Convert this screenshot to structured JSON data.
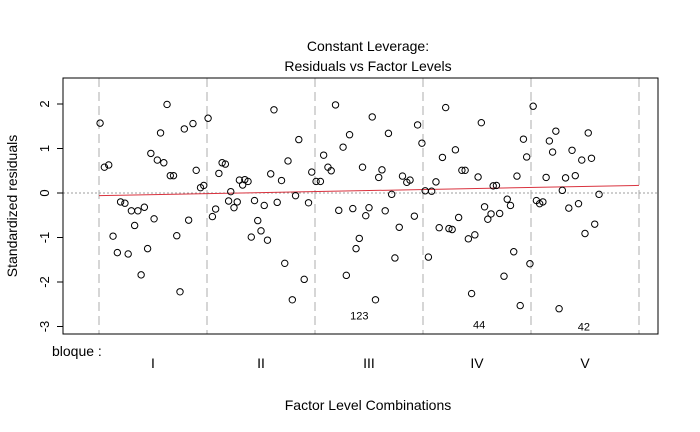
{
  "chart_data": {
    "type": "scatter",
    "title_line1": "Constant Leverage:",
    "title_line2": "Residuals vs Factor Levels",
    "xlabel": "Factor Level Combinations",
    "ylabel": "Standardized residuals",
    "factor_label": "bloque :",
    "groups": [
      "I",
      "II",
      "III",
      "IV",
      "V"
    ],
    "ylim": [
      -3.2,
      2.6
    ],
    "yticks": [
      -3,
      -2,
      -1,
      0,
      1,
      2
    ],
    "grid": false,
    "point_color": "#000000",
    "smooth_color": "#d9333f",
    "reference_color": "#9e9e9e",
    "separator_color": "#c8c8c8",
    "smooth_line": [
      {
        "x": 0.5,
        "y": -0.06
      },
      {
        "x": 5.5,
        "y": 0.17
      }
    ],
    "annotations": [
      {
        "label": "123",
        "x": 2.91,
        "y": -2.75
      },
      {
        "label": "44",
        "x": 4.02,
        "y": -2.95
      },
      {
        "label": "42",
        "x": 4.99,
        "y": -3.0
      }
    ],
    "points": [
      {
        "x": 0.51,
        "y": 1.57
      },
      {
        "x": 0.55,
        "y": 0.58
      },
      {
        "x": 0.59,
        "y": 0.63
      },
      {
        "x": 0.63,
        "y": -0.97
      },
      {
        "x": 0.67,
        "y": -1.34
      },
      {
        "x": 0.7,
        "y": -0.2
      },
      {
        "x": 0.74,
        "y": -0.23
      },
      {
        "x": 0.77,
        "y": -1.37
      },
      {
        "x": 0.8,
        "y": -0.4
      },
      {
        "x": 0.83,
        "y": -0.73
      },
      {
        "x": 0.86,
        "y": -0.4
      },
      {
        "x": 0.89,
        "y": -1.84
      },
      {
        "x": 0.92,
        "y": -0.32
      },
      {
        "x": 0.95,
        "y": -1.25
      },
      {
        "x": 0.98,
        "y": 0.89
      },
      {
        "x": 1.01,
        "y": -0.58
      },
      {
        "x": 1.04,
        "y": 0.74
      },
      {
        "x": 1.07,
        "y": 1.35
      },
      {
        "x": 1.1,
        "y": 0.68
      },
      {
        "x": 1.13,
        "y": 1.99
      },
      {
        "x": 1.16,
        "y": 0.39
      },
      {
        "x": 1.19,
        "y": 0.39
      },
      {
        "x": 1.22,
        "y": -0.96
      },
      {
        "x": 1.25,
        "y": -2.22
      },
      {
        "x": 1.29,
        "y": 1.44
      },
      {
        "x": 1.33,
        "y": -0.61
      },
      {
        "x": 1.37,
        "y": 1.56
      },
      {
        "x": 1.4,
        "y": 0.51
      },
      {
        "x": 1.44,
        "y": 0.12
      },
      {
        "x": 1.47,
        "y": 0.17
      },
      {
        "x": 1.51,
        "y": 1.68
      },
      {
        "x": 1.55,
        "y": -0.53
      },
      {
        "x": 1.58,
        "y": -0.36
      },
      {
        "x": 1.61,
        "y": 0.44
      },
      {
        "x": 1.64,
        "y": 0.68
      },
      {
        "x": 1.67,
        "y": 0.65
      },
      {
        "x": 1.7,
        "y": -0.18
      },
      {
        "x": 1.72,
        "y": 0.03
      },
      {
        "x": 1.75,
        "y": -0.33
      },
      {
        "x": 1.78,
        "y": -0.2
      },
      {
        "x": 1.8,
        "y": 0.29
      },
      {
        "x": 1.83,
        "y": 0.18
      },
      {
        "x": 1.85,
        "y": 0.3
      },
      {
        "x": 1.88,
        "y": 0.26
      },
      {
        "x": 1.91,
        "y": -0.99
      },
      {
        "x": 1.94,
        "y": -0.17
      },
      {
        "x": 1.97,
        "y": -0.62
      },
      {
        "x": 2.0,
        "y": -0.85
      },
      {
        "x": 2.03,
        "y": -0.28
      },
      {
        "x": 2.06,
        "y": -1.06
      },
      {
        "x": 2.09,
        "y": 0.43
      },
      {
        "x": 2.12,
        "y": 1.87
      },
      {
        "x": 2.15,
        "y": -0.21
      },
      {
        "x": 2.19,
        "y": 0.28
      },
      {
        "x": 2.22,
        "y": -1.58
      },
      {
        "x": 2.25,
        "y": 0.72
      },
      {
        "x": 2.29,
        "y": -2.4
      },
      {
        "x": 2.32,
        "y": -0.06
      },
      {
        "x": 2.35,
        "y": 1.2
      },
      {
        "x": 2.4,
        "y": -1.94
      },
      {
        "x": 2.44,
        "y": -0.22
      },
      {
        "x": 2.47,
        "y": 0.47
      },
      {
        "x": 2.51,
        "y": 0.26
      },
      {
        "x": 2.55,
        "y": 0.26
      },
      {
        "x": 2.58,
        "y": 0.85
      },
      {
        "x": 2.62,
        "y": 0.58
      },
      {
        "x": 2.65,
        "y": 0.5
      },
      {
        "x": 2.69,
        "y": 1.98
      },
      {
        "x": 2.72,
        "y": -0.39
      },
      {
        "x": 2.76,
        "y": 1.03
      },
      {
        "x": 2.79,
        "y": -1.85
      },
      {
        "x": 2.82,
        "y": 1.31
      },
      {
        "x": 2.85,
        "y": -0.35
      },
      {
        "x": 2.88,
        "y": -1.25
      },
      {
        "x": 2.91,
        "y": -1.02
      },
      {
        "x": 2.94,
        "y": 0.58
      },
      {
        "x": 2.97,
        "y": -0.51
      },
      {
        "x": 3.0,
        "y": -0.33
      },
      {
        "x": 3.03,
        "y": 1.71
      },
      {
        "x": 3.06,
        "y": -2.4
      },
      {
        "x": 3.09,
        "y": 0.35
      },
      {
        "x": 3.12,
        "y": 0.52
      },
      {
        "x": 3.15,
        "y": -0.4
      },
      {
        "x": 3.18,
        "y": 1.34
      },
      {
        "x": 3.21,
        "y": -0.03
      },
      {
        "x": 3.24,
        "y": -1.46
      },
      {
        "x": 3.28,
        "y": -0.77
      },
      {
        "x": 3.31,
        "y": 0.38
      },
      {
        "x": 3.35,
        "y": 0.24
      },
      {
        "x": 3.38,
        "y": 0.29
      },
      {
        "x": 3.42,
        "y": -0.52
      },
      {
        "x": 3.45,
        "y": 1.53
      },
      {
        "x": 3.49,
        "y": 1.12
      },
      {
        "x": 3.52,
        "y": 0.05
      },
      {
        "x": 3.55,
        "y": -1.44
      },
      {
        "x": 3.58,
        "y": 0.04
      },
      {
        "x": 3.62,
        "y": 0.25
      },
      {
        "x": 3.65,
        "y": -0.78
      },
      {
        "x": 3.68,
        "y": 0.8
      },
      {
        "x": 3.71,
        "y": 1.92
      },
      {
        "x": 3.74,
        "y": -0.8
      },
      {
        "x": 3.77,
        "y": -0.82
      },
      {
        "x": 3.8,
        "y": 0.97
      },
      {
        "x": 3.83,
        "y": -0.55
      },
      {
        "x": 3.86,
        "y": 0.51
      },
      {
        "x": 3.89,
        "y": 0.51
      },
      {
        "x": 3.92,
        "y": -1.03
      },
      {
        "x": 3.95,
        "y": -2.26
      },
      {
        "x": 3.98,
        "y": -0.94
      },
      {
        "x": 4.01,
        "y": 0.36
      },
      {
        "x": 4.04,
        "y": 1.58
      },
      {
        "x": 4.07,
        "y": -0.31
      },
      {
        "x": 4.1,
        "y": -0.59
      },
      {
        "x": 4.13,
        "y": -0.47
      },
      {
        "x": 4.15,
        "y": 0.16
      },
      {
        "x": 4.18,
        "y": 0.17
      },
      {
        "x": 4.21,
        "y": -0.46
      },
      {
        "x": 4.25,
        "y": -1.87
      },
      {
        "x": 4.28,
        "y": -0.14
      },
      {
        "x": 4.31,
        "y": -0.28
      },
      {
        "x": 4.34,
        "y": -1.32
      },
      {
        "x": 4.37,
        "y": 0.38
      },
      {
        "x": 4.4,
        "y": -2.53
      },
      {
        "x": 4.43,
        "y": 1.21
      },
      {
        "x": 4.46,
        "y": 0.81
      },
      {
        "x": 4.49,
        "y": -1.59
      },
      {
        "x": 4.52,
        "y": 1.95
      },
      {
        "x": 4.55,
        "y": -0.17
      },
      {
        "x": 4.58,
        "y": -0.24
      },
      {
        "x": 4.61,
        "y": -0.2
      },
      {
        "x": 4.64,
        "y": 0.35
      },
      {
        "x": 4.67,
        "y": 1.17
      },
      {
        "x": 4.7,
        "y": 0.92
      },
      {
        "x": 4.73,
        "y": 1.39
      },
      {
        "x": 4.76,
        "y": -2.6
      },
      {
        "x": 4.79,
        "y": 0.06
      },
      {
        "x": 4.82,
        "y": 0.34
      },
      {
        "x": 4.85,
        "y": -0.34
      },
      {
        "x": 4.88,
        "y": 0.96
      },
      {
        "x": 4.91,
        "y": 0.39
      },
      {
        "x": 4.94,
        "y": -0.24
      },
      {
        "x": 4.97,
        "y": 0.74
      },
      {
        "x": 5.0,
        "y": -0.91
      },
      {
        "x": 5.03,
        "y": 1.35
      },
      {
        "x": 5.06,
        "y": 0.78
      },
      {
        "x": 5.09,
        "y": -0.7
      },
      {
        "x": 5.13,
        "y": -0.03
      }
    ]
  }
}
